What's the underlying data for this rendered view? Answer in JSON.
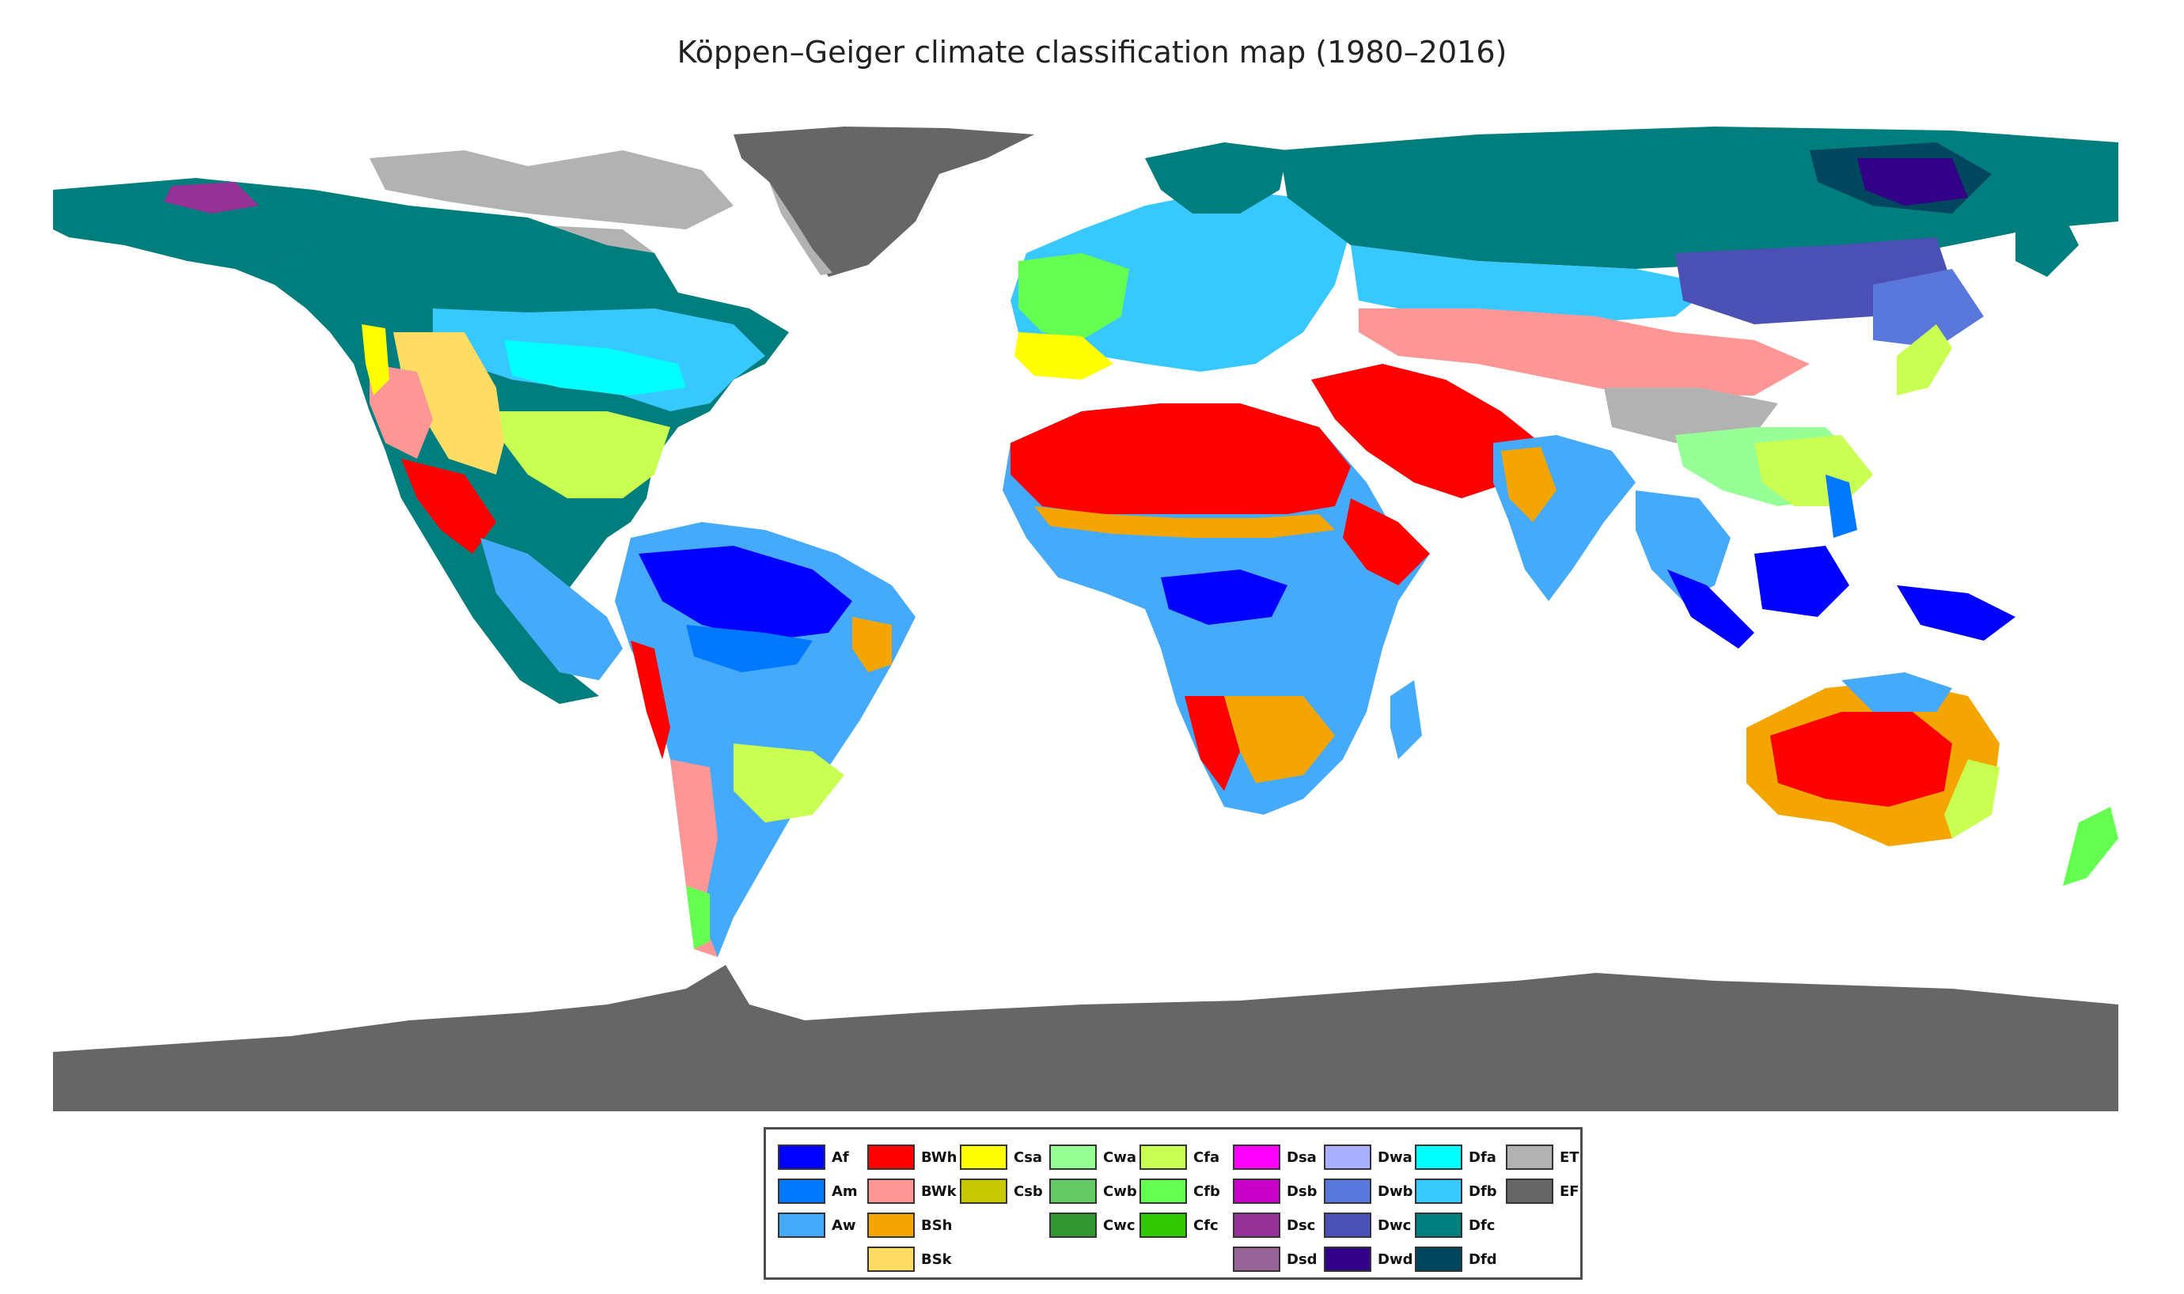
{
  "title": "Köppen–Geiger climate classification map (1980–2016)",
  "legend": {
    "columns": [
      [
        {
          "code": "Af",
          "color": "#0000fe"
        },
        {
          "code": "Am",
          "color": "#0078ff"
        },
        {
          "code": "Aw",
          "color": "#46aafa"
        }
      ],
      [
        {
          "code": "BWh",
          "color": "#ff0000"
        },
        {
          "code": "BWk",
          "color": "#ff9696"
        },
        {
          "code": "BSh",
          "color": "#f5a500"
        },
        {
          "code": "BSk",
          "color": "#ffdc64"
        }
      ],
      [
        {
          "code": "Csa",
          "color": "#ffff00"
        },
        {
          "code": "Csb",
          "color": "#c8c800"
        }
      ],
      [
        {
          "code": "Cwa",
          "color": "#96ff96"
        },
        {
          "code": "Cwb",
          "color": "#64c864"
        },
        {
          "code": "Cwc",
          "color": "#329632"
        }
      ],
      [
        {
          "code": "Cfa",
          "color": "#c8ff50"
        },
        {
          "code": "Cfb",
          "color": "#64ff50"
        },
        {
          "code": "Cfc",
          "color": "#32c800"
        }
      ],
      [
        {
          "code": "Dsa",
          "color": "#ff00ff"
        },
        {
          "code": "Dsb",
          "color": "#c800c8"
        },
        {
          "code": "Dsc",
          "color": "#963296"
        },
        {
          "code": "Dsd",
          "color": "#966496"
        }
      ],
      [
        {
          "code": "Dwa",
          "color": "#aaafff"
        },
        {
          "code": "Dwb",
          "color": "#5a78dc"
        },
        {
          "code": "Dwc",
          "color": "#4b50b4"
        },
        {
          "code": "Dwd",
          "color": "#320087"
        }
      ],
      [
        {
          "code": "Dfa",
          "color": "#00ffff"
        },
        {
          "code": "Dfb",
          "color": "#37c8ff"
        },
        {
          "code": "Dfc",
          "color": "#007d7d"
        },
        {
          "code": "Dfd",
          "color": "#00465f"
        }
      ],
      [
        {
          "code": "ET",
          "color": "#b2b2b2"
        },
        {
          "code": "EF",
          "color": "#666666"
        }
      ]
    ]
  }
}
